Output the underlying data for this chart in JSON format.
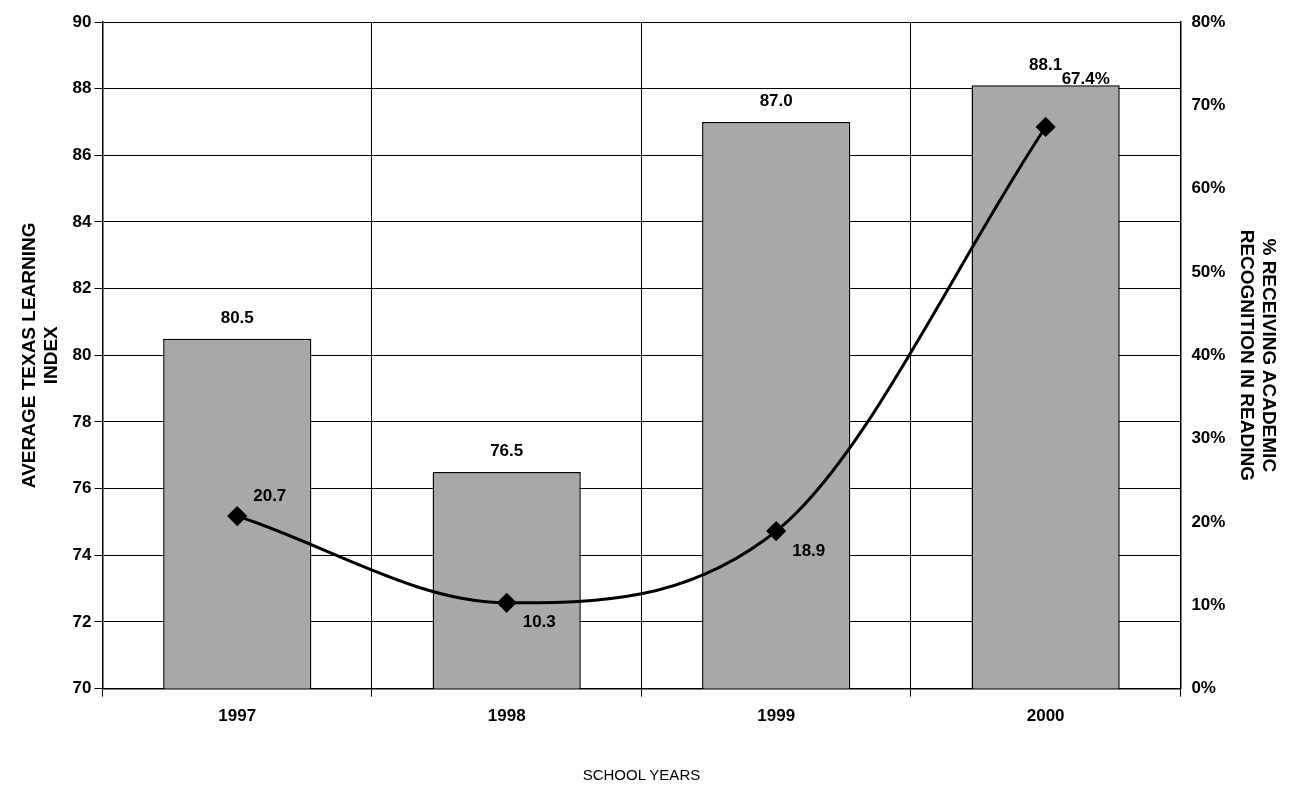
{
  "chart_data": {
    "type": "bar",
    "categories": [
      "1997",
      "1998",
      "1999",
      "2000"
    ],
    "series": [
      {
        "color": "#a8a8a8",
        "values": [
          80.5,
          76.5,
          87.0,
          88.1
        ],
        "value_labels": [
          "80.5",
          "76.5",
          "87.0",
          "88.1"
        ]
      },
      {
        "type": "line",
        "axis": "y2",
        "color": "#000000",
        "marker": "diamond",
        "line_style": "solid",
        "values": [
          20.7,
          10.3,
          18.9,
          67.4
        ],
        "value_labels": [
          "20.7",
          "10.3",
          "18.9",
          "67.4%"
        ]
      }
    ],
    "xlabel": "SCHOOL YEARS",
    "ylabel": "AVERAGE TEXAS LEARNING INDEX",
    "y2label": "% RECEIVING ACADEMIC RECOGNITION IN READING",
    "ylim": [
      70,
      90
    ],
    "yticks": [
      70,
      72,
      74,
      76,
      78,
      80,
      82,
      84,
      86,
      88,
      90
    ],
    "y2lim": [
      0,
      80
    ],
    "y2ticks": [
      {
        "value": 0,
        "label": "0%"
      },
      {
        "value": 10,
        "label": "10%"
      },
      {
        "value": 20,
        "label": "20%"
      },
      {
        "value": 30,
        "label": "30%"
      },
      {
        "value": 40,
        "label": "40%"
      },
      {
        "value": 50,
        "label": "50%"
      },
      {
        "value": 60,
        "label": "60%"
      },
      {
        "value": 70,
        "label": "70%"
      },
      {
        "value": 80,
        "label": "80%"
      }
    ],
    "grid": true
  }
}
